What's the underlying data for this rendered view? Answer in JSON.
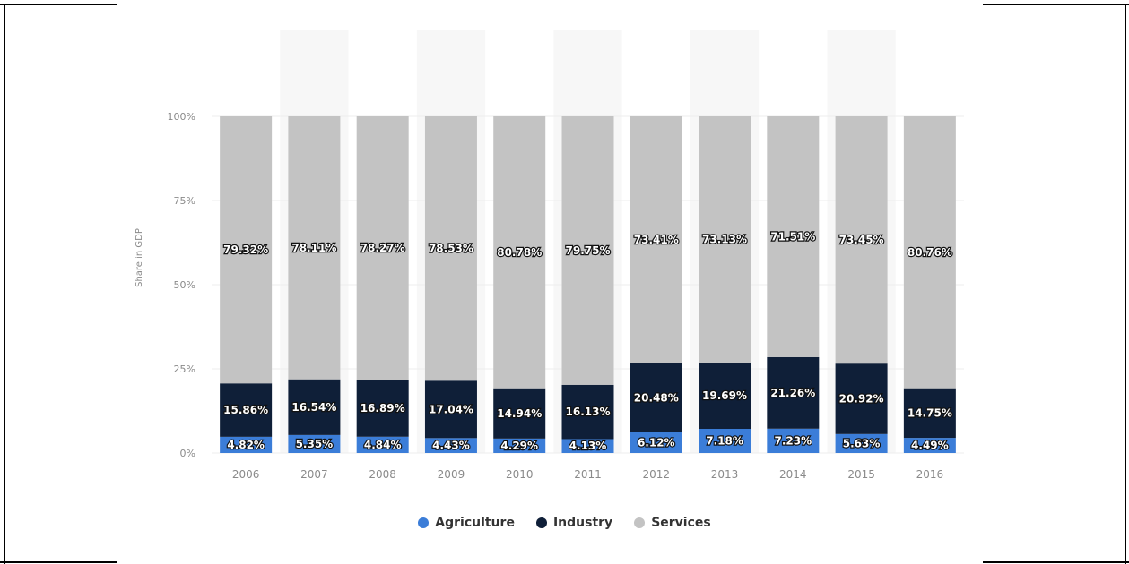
{
  "chart_data": {
    "type": "bar",
    "stacked": true,
    "categories": [
      "2006",
      "2007",
      "2008",
      "2009",
      "2010",
      "2011",
      "2012",
      "2013",
      "2014",
      "2015",
      "2016"
    ],
    "series": [
      {
        "name": "Agriculture",
        "color": "#3b7dd8",
        "values": [
          4.82,
          5.35,
          4.84,
          4.43,
          4.29,
          4.13,
          6.12,
          7.18,
          7.23,
          5.63,
          4.49
        ],
        "labels": [
          "4.82%",
          "5.35%",
          "4.84%",
          "4.43%",
          "4.29%",
          "4.13%",
          "6.12%",
          "7.18%",
          "7.23%",
          "5.63%",
          "4.49%"
        ]
      },
      {
        "name": "Industry",
        "color": "#0f1f38",
        "values": [
          15.86,
          16.54,
          16.89,
          17.04,
          14.94,
          16.13,
          20.48,
          19.69,
          21.26,
          20.92,
          14.75
        ],
        "labels": [
          "15.86%",
          "16.54%",
          "16.89%",
          "17.04%",
          "14.94%",
          "16.13%",
          "20.48%",
          "19.69%",
          "21.26%",
          "20.92%",
          "14.75%"
        ]
      },
      {
        "name": "Services",
        "color": "#c3c3c3",
        "values": [
          79.32,
          78.11,
          78.27,
          78.53,
          80.78,
          79.75,
          73.41,
          73.13,
          71.51,
          73.45,
          80.76
        ],
        "labels": [
          "79.32%",
          "78.11%",
          "78.27%",
          "78.53%",
          "80.78%",
          "79.75%",
          "73.41%",
          "73.13%",
          "71.51%",
          "73.45%",
          "80.76%"
        ]
      }
    ],
    "ylabel": "Share in GDP",
    "ylim": [
      0,
      100
    ],
    "yticks": [
      "0%",
      "25%",
      "50%",
      "75%",
      "100%"
    ],
    "ytick_values": [
      0,
      25,
      50,
      75,
      100
    ],
    "grid": true,
    "legend_position": "bottom-center"
  }
}
